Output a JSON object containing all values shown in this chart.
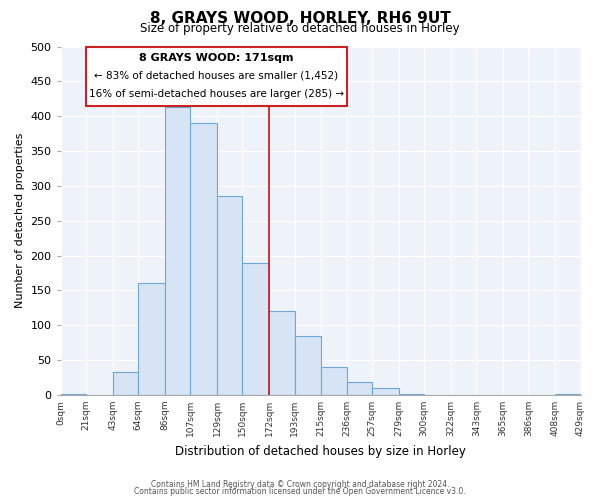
{
  "title": "8, GRAYS WOOD, HORLEY, RH6 9UT",
  "subtitle": "Size of property relative to detached houses in Horley",
  "xlabel": "Distribution of detached houses by size in Horley",
  "ylabel": "Number of detached properties",
  "bar_edges": [
    0,
    21,
    43,
    64,
    86,
    107,
    129,
    150,
    172,
    193,
    215,
    236,
    257,
    279,
    300,
    322,
    343,
    365,
    386,
    408,
    429
  ],
  "bar_heights": [
    2,
    0,
    33,
    160,
    413,
    390,
    285,
    190,
    120,
    85,
    40,
    18,
    10,
    2,
    0,
    0,
    0,
    0,
    0,
    2
  ],
  "tick_labels": [
    "0sqm",
    "21sqm",
    "43sqm",
    "64sqm",
    "86sqm",
    "107sqm",
    "129sqm",
    "150sqm",
    "172sqm",
    "193sqm",
    "215sqm",
    "236sqm",
    "257sqm",
    "279sqm",
    "300sqm",
    "322sqm",
    "343sqm",
    "365sqm",
    "386sqm",
    "408sqm",
    "429sqm"
  ],
  "bar_color": "#d6e4f5",
  "bar_edge_color": "#6fa8d6",
  "property_line_x": 172,
  "property_line_color": "#cc2222",
  "annotation_box_color": "#ffffff",
  "annotation_border_color": "#cc2222",
  "annotation_title": "8 GRAYS WOOD: 171sqm",
  "annotation_line1": "← 83% of detached houses are smaller (1,452)",
  "annotation_line2": "16% of semi-detached houses are larger (285) →",
  "ylim": [
    0,
    500
  ],
  "yticks": [
    0,
    50,
    100,
    150,
    200,
    250,
    300,
    350,
    400,
    450,
    500
  ],
  "background_color": "#ffffff",
  "plot_bg_color": "#eef3fa",
  "grid_color": "#ffffff",
  "footnote1": "Contains HM Land Registry data © Crown copyright and database right 2024.",
  "footnote2": "Contains public sector information licensed under the Open Government Licence v3.0."
}
